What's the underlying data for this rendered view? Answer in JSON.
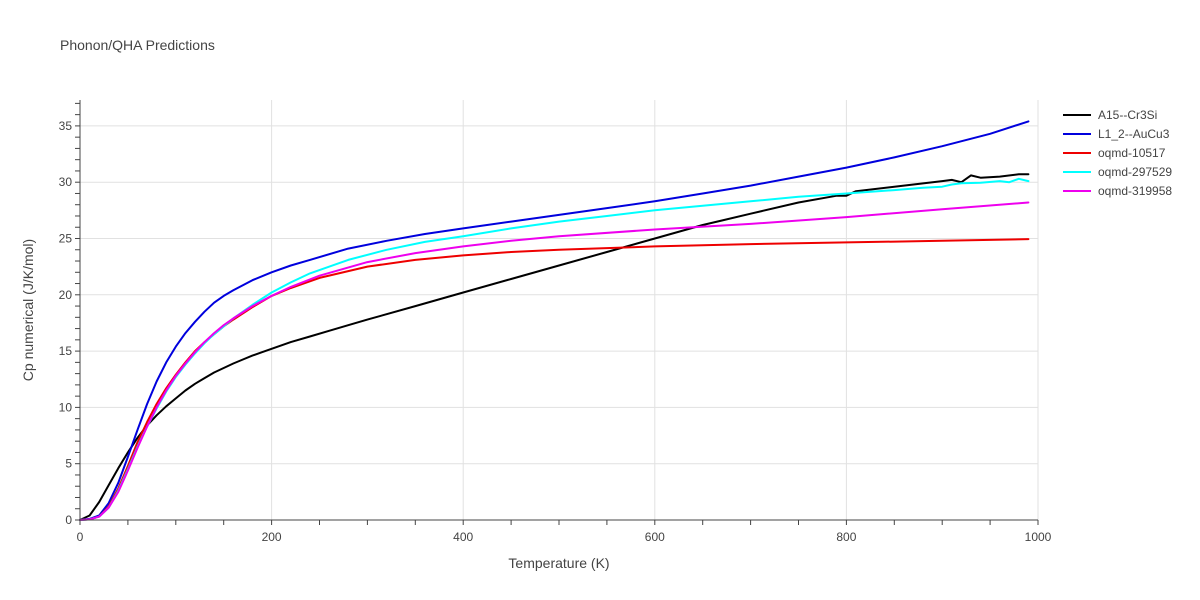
{
  "chart_data": {
    "type": "line",
    "title": "Phonon/QHA Predictions",
    "xlabel": "Temperature (K)",
    "ylabel": "Cp numerical (J/K/mol)",
    "xlim": [
      0,
      1000
    ],
    "ylim": [
      0,
      37.3
    ],
    "xticks": [
      0,
      200,
      400,
      600,
      800,
      1000
    ],
    "yticks": [
      0,
      5,
      10,
      15,
      20,
      25,
      30,
      35
    ],
    "grid": true,
    "legend_position": "top-right",
    "series": [
      {
        "name": "A15--Cr3Si",
        "color": "#000000",
        "x": [
          0,
          10,
          20,
          30,
          40,
          50,
          60,
          70,
          80,
          90,
          100,
          110,
          120,
          130,
          140,
          150,
          160,
          170,
          180,
          190,
          200,
          220,
          240,
          260,
          280,
          300,
          350,
          400,
          450,
          500,
          550,
          600,
          650,
          670,
          700,
          750,
          790,
          800,
          810,
          850,
          900,
          910,
          920,
          930,
          940,
          960,
          980,
          990
        ],
        "y": [
          0,
          0.4,
          1.6,
          3.1,
          4.6,
          6.0,
          7.3,
          8.4,
          9.3,
          10.1,
          10.8,
          11.5,
          12.1,
          12.6,
          13.1,
          13.5,
          13.9,
          14.25,
          14.6,
          14.9,
          15.2,
          15.8,
          16.3,
          16.8,
          17.3,
          17.8,
          19.0,
          20.2,
          21.4,
          22.6,
          23.8,
          25.0,
          26.2,
          26.6,
          27.2,
          28.2,
          28.8,
          28.8,
          29.2,
          29.6,
          30.1,
          30.2,
          30.0,
          30.6,
          30.4,
          30.5,
          30.7,
          30.7
        ]
      },
      {
        "name": "L1_2--AuCu3",
        "color": "#0000dd",
        "x": [
          0,
          10,
          20,
          30,
          40,
          50,
          60,
          70,
          80,
          90,
          100,
          110,
          120,
          130,
          140,
          150,
          160,
          180,
          200,
          220,
          240,
          280,
          320,
          360,
          400,
          450,
          500,
          550,
          600,
          650,
          700,
          750,
          800,
          850,
          900,
          950,
          990
        ],
        "y": [
          0,
          0.1,
          0.4,
          1.5,
          3.3,
          5.6,
          8.0,
          10.3,
          12.3,
          14.0,
          15.4,
          16.6,
          17.6,
          18.5,
          19.3,
          19.9,
          20.4,
          21.3,
          22.0,
          22.6,
          23.1,
          24.1,
          24.8,
          25.4,
          25.9,
          26.5,
          27.1,
          27.7,
          28.3,
          29.0,
          29.7,
          30.5,
          31.3,
          32.2,
          33.2,
          34.3,
          35.4
        ]
      },
      {
        "name": "oqmd-10517",
        "color": "#ee0000",
        "x": [
          0,
          10,
          20,
          30,
          40,
          50,
          60,
          70,
          80,
          90,
          100,
          110,
          120,
          130,
          140,
          150,
          160,
          180,
          200,
          220,
          250,
          300,
          350,
          400,
          450,
          500,
          600,
          700,
          800,
          900,
          990
        ],
        "y": [
          0,
          0.05,
          0.3,
          1.2,
          2.8,
          4.8,
          6.9,
          8.7,
          10.3,
          11.7,
          12.9,
          14.0,
          15.0,
          15.8,
          16.5,
          17.2,
          17.8,
          18.9,
          19.9,
          20.6,
          21.5,
          22.5,
          23.1,
          23.5,
          23.8,
          24.0,
          24.3,
          24.5,
          24.65,
          24.8,
          24.95
        ]
      },
      {
        "name": "oqmd-297529",
        "color": "#00ffff",
        "x": [
          0,
          10,
          20,
          30,
          40,
          50,
          60,
          70,
          80,
          90,
          100,
          110,
          120,
          130,
          140,
          150,
          160,
          180,
          200,
          220,
          240,
          280,
          320,
          360,
          400,
          450,
          500,
          550,
          600,
          650,
          700,
          750,
          800,
          850,
          880,
          900,
          910,
          920,
          940,
          960,
          970,
          980,
          990
        ],
        "y": [
          0,
          0.05,
          0.3,
          1.1,
          2.6,
          4.5,
          6.5,
          8.3,
          9.9,
          11.4,
          12.7,
          13.8,
          14.8,
          15.7,
          16.5,
          17.2,
          17.9,
          19.1,
          20.2,
          21.1,
          21.9,
          23.1,
          24.0,
          24.7,
          25.2,
          25.9,
          26.5,
          27.0,
          27.5,
          27.9,
          28.3,
          28.7,
          29.0,
          29.3,
          29.5,
          29.6,
          29.8,
          29.9,
          29.95,
          30.1,
          30.0,
          30.3,
          30.1
        ]
      },
      {
        "name": "oqmd-319958",
        "color": "#ee00ee",
        "x": [
          0,
          10,
          20,
          30,
          40,
          50,
          60,
          70,
          80,
          90,
          100,
          110,
          120,
          130,
          140,
          150,
          160,
          180,
          200,
          220,
          250,
          300,
          350,
          400,
          450,
          500,
          600,
          700,
          800,
          900,
          990
        ],
        "y": [
          0,
          0.05,
          0.3,
          1.1,
          2.5,
          4.4,
          6.4,
          8.3,
          10.0,
          11.5,
          12.8,
          13.9,
          14.9,
          15.8,
          16.6,
          17.3,
          17.9,
          19.0,
          19.9,
          20.7,
          21.7,
          22.9,
          23.7,
          24.3,
          24.8,
          25.2,
          25.8,
          26.3,
          26.9,
          27.6,
          28.2
        ]
      }
    ]
  }
}
